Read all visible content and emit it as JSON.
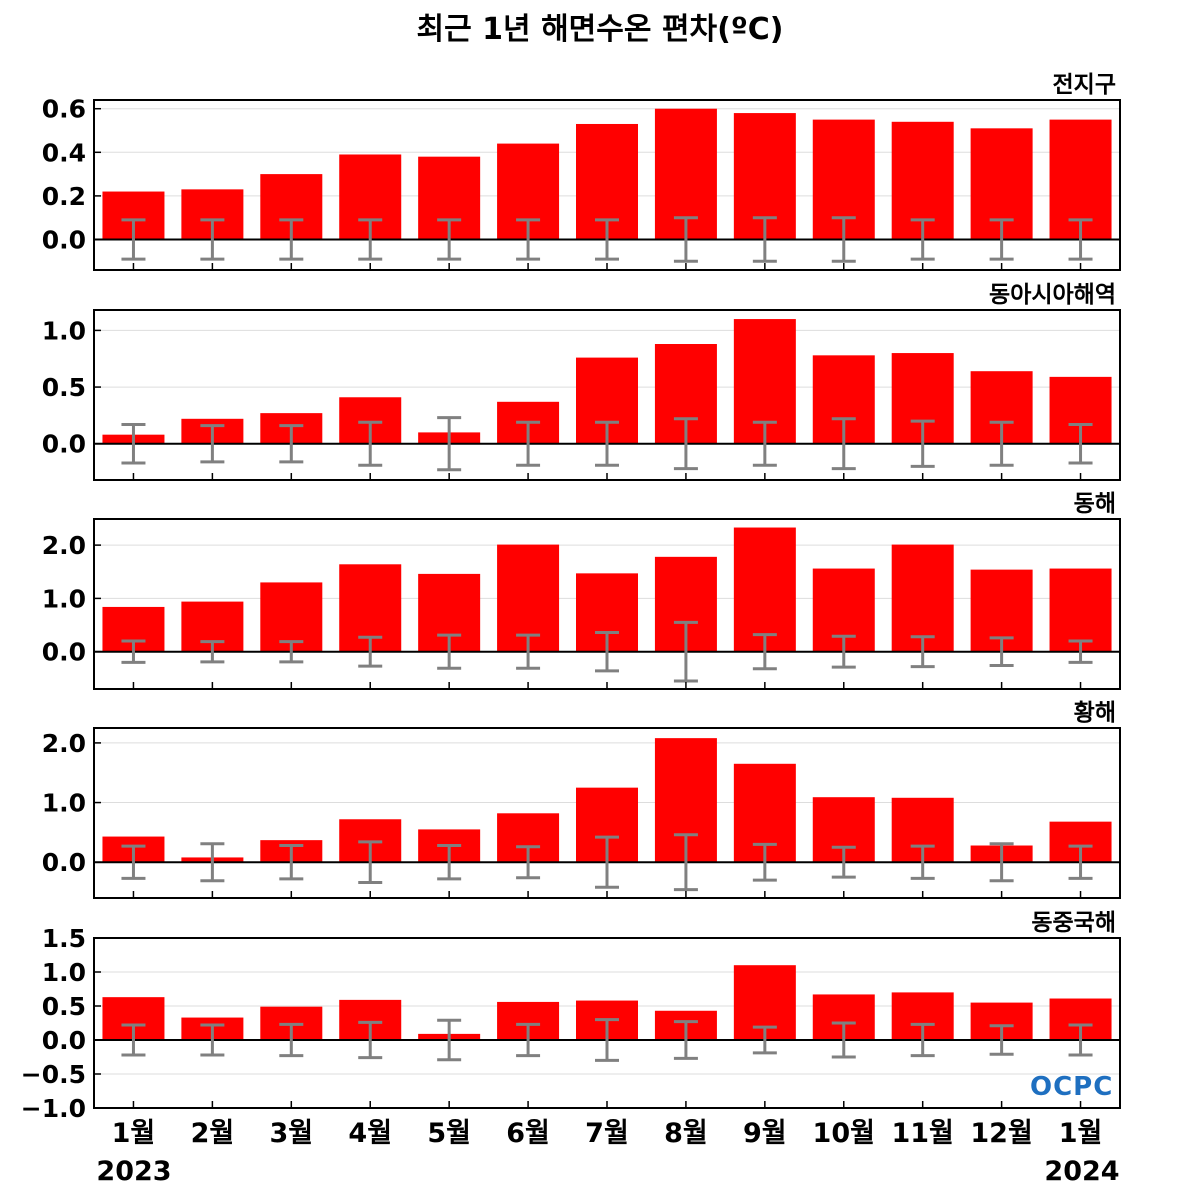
{
  "title": "최근 1년 해면수온 편차(ºC)",
  "logo_text": "OCPC",
  "colors": {
    "bar": "#ff0000",
    "error": "#808080",
    "frame": "#000000",
    "grid": "#dddddd"
  },
  "x_labels": [
    "1월",
    "2월",
    "3월",
    "4월",
    "5월",
    "6월",
    "7월",
    "8월",
    "9월",
    "10월",
    "11월",
    "12월",
    "1월"
  ],
  "year_labels": {
    "start": "2023",
    "end": "2024"
  },
  "chart_data": [
    {
      "type": "bar",
      "title": "전지구",
      "categories": [
        "1월",
        "2월",
        "3월",
        "4월",
        "5월",
        "6월",
        "7월",
        "8월",
        "9월",
        "10월",
        "11월",
        "12월",
        "1월"
      ],
      "values": [
        0.22,
        0.23,
        0.3,
        0.39,
        0.38,
        0.44,
        0.53,
        0.6,
        0.58,
        0.55,
        0.54,
        0.51,
        0.55
      ],
      "error": [
        0.09,
        0.09,
        0.09,
        0.09,
        0.09,
        0.09,
        0.09,
        0.1,
        0.1,
        0.1,
        0.09,
        0.09,
        0.09
      ],
      "ylim": [
        -0.14,
        0.64
      ],
      "ticks": [
        0.0,
        0.2,
        0.4,
        0.6
      ],
      "tick_labels": [
        "0.0",
        "0.2",
        "0.4",
        "0.6"
      ]
    },
    {
      "type": "bar",
      "title": "동아시아해역",
      "categories": [
        "1월",
        "2월",
        "3월",
        "4월",
        "5월",
        "6월",
        "7월",
        "8월",
        "9월",
        "10월",
        "11월",
        "12월",
        "1월"
      ],
      "values": [
        0.08,
        0.22,
        0.27,
        0.41,
        0.1,
        0.37,
        0.76,
        0.88,
        1.1,
        0.78,
        0.8,
        0.64,
        0.59
      ],
      "error": [
        0.17,
        0.16,
        0.16,
        0.19,
        0.23,
        0.19,
        0.19,
        0.22,
        0.19,
        0.22,
        0.2,
        0.19,
        0.17
      ],
      "ylim": [
        -0.32,
        1.18
      ],
      "ticks": [
        0.0,
        0.5,
        1.0
      ],
      "tick_labels": [
        "0.0",
        "0.5",
        "1.0"
      ]
    },
    {
      "type": "bar",
      "title": "동해",
      "categories": [
        "1월",
        "2월",
        "3월",
        "4월",
        "5월",
        "6월",
        "7월",
        "8월",
        "9월",
        "10월",
        "11월",
        "12월",
        "1월"
      ],
      "values": [
        0.84,
        0.94,
        1.3,
        1.64,
        1.46,
        2.01,
        1.47,
        1.78,
        2.33,
        1.56,
        2.01,
        1.54,
        1.56
      ],
      "error": [
        0.2,
        0.19,
        0.19,
        0.27,
        0.31,
        0.31,
        0.36,
        0.55,
        0.32,
        0.29,
        0.28,
        0.26,
        0.2
      ],
      "ylim": [
        -0.7,
        2.49
      ],
      "ticks": [
        0.0,
        1.0,
        2.0
      ],
      "tick_labels": [
        "0.0",
        "1.0",
        "2.0"
      ]
    },
    {
      "type": "bar",
      "title": "황해",
      "categories": [
        "1월",
        "2월",
        "3월",
        "4월",
        "5월",
        "6월",
        "7월",
        "8월",
        "9월",
        "10월",
        "11월",
        "12월",
        "1월"
      ],
      "values": [
        0.43,
        0.08,
        0.37,
        0.72,
        0.55,
        0.82,
        1.25,
        2.08,
        1.65,
        1.09,
        1.08,
        0.28,
        0.68
      ],
      "error": [
        0.27,
        0.31,
        0.28,
        0.34,
        0.28,
        0.26,
        0.42,
        0.46,
        0.3,
        0.25,
        0.27,
        0.31,
        0.27
      ],
      "ylim": [
        -0.6,
        2.25
      ],
      "ticks": [
        0.0,
        1.0,
        2.0
      ],
      "tick_labels": [
        "0.0",
        "1.0",
        "2.0"
      ]
    },
    {
      "type": "bar",
      "title": "동중국해",
      "categories": [
        "1월",
        "2월",
        "3월",
        "4월",
        "5월",
        "6월",
        "7월",
        "8월",
        "9월",
        "10월",
        "11월",
        "12월",
        "1월"
      ],
      "values": [
        0.63,
        0.33,
        0.49,
        0.59,
        0.09,
        0.56,
        0.58,
        0.43,
        1.1,
        0.67,
        0.7,
        0.55,
        0.61
      ],
      "error": [
        0.22,
        0.22,
        0.23,
        0.26,
        0.29,
        0.23,
        0.3,
        0.27,
        0.19,
        0.25,
        0.23,
        0.21,
        0.22
      ],
      "ylim": [
        -1.0,
        1.5
      ],
      "ticks": [
        -1.0,
        -0.5,
        0.0,
        0.5,
        1.0,
        1.5
      ],
      "tick_labels": [
        "−1.0",
        "−0.5",
        "0.0",
        "0.5",
        "1.0",
        "1.5"
      ]
    }
  ]
}
